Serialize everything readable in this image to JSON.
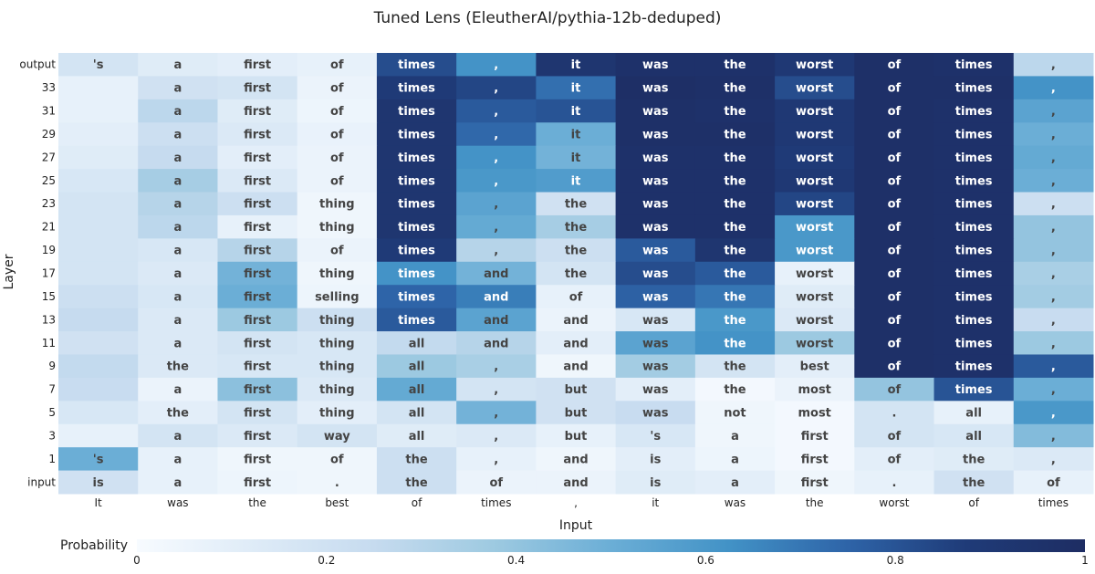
{
  "chart_data": {
    "type": "heatmap",
    "title": "Tuned Lens (EleutherAI/pythia-12b-deduped)",
    "xlabel": "Input",
    "ylabel": "Layer",
    "x_tick_labels": [
      "It",
      "was",
      "the",
      "best",
      "of",
      "times",
      ",",
      "it",
      "was",
      "the",
      "worst",
      "of",
      "times"
    ],
    "y_tick_labels": [
      "output",
      "33",
      "31",
      "29",
      "27",
      "25",
      "23",
      "21",
      "19",
      "17",
      "15",
      "13",
      "11",
      "9",
      "7",
      "5",
      "3",
      "1",
      "input"
    ],
    "cell_labels": [
      [
        "'s",
        "a",
        "first",
        "of",
        "times",
        ",",
        "it",
        "was",
        "the",
        "worst",
        "of",
        "times",
        ","
      ],
      [
        "",
        "a",
        "first",
        "of",
        "times",
        ",",
        "it",
        "was",
        "the",
        "worst",
        "of",
        "times",
        ","
      ],
      [
        "",
        "a",
        "first",
        "of",
        "times",
        ",",
        "it",
        "was",
        "the",
        "worst",
        "of",
        "times",
        ","
      ],
      [
        "",
        "a",
        "first",
        "of",
        "times",
        ",",
        "it",
        "was",
        "the",
        "worst",
        "of",
        "times",
        ","
      ],
      [
        "",
        "a",
        "first",
        "of",
        "times",
        ",",
        "it",
        "was",
        "the",
        "worst",
        "of",
        "times",
        ","
      ],
      [
        "",
        "a",
        "first",
        "of",
        "times",
        ",",
        "it",
        "was",
        "the",
        "worst",
        "of",
        "times",
        ","
      ],
      [
        "",
        "a",
        "first",
        "thing",
        "times",
        ",",
        "the",
        "was",
        "the",
        "worst",
        "of",
        "times",
        ","
      ],
      [
        "",
        "a",
        "first",
        "thing",
        "times",
        ",",
        "the",
        "was",
        "the",
        "worst",
        "of",
        "times",
        ","
      ],
      [
        "",
        "a",
        "first",
        "of",
        "times",
        ",",
        "the",
        "was",
        "the",
        "worst",
        "of",
        "times",
        ","
      ],
      [
        "",
        "a",
        "first",
        "thing",
        "times",
        "and",
        "the",
        "was",
        "the",
        "worst",
        "of",
        "times",
        ","
      ],
      [
        "",
        "a",
        "first",
        "selling",
        "times",
        "and",
        "of",
        "was",
        "the",
        "worst",
        "of",
        "times",
        ","
      ],
      [
        "",
        "a",
        "first",
        "thing",
        "times",
        "and",
        "and",
        "was",
        "the",
        "worst",
        "of",
        "times",
        ","
      ],
      [
        "",
        "a",
        "first",
        "thing",
        "all",
        "and",
        "and",
        "was",
        "the",
        "worst",
        "of",
        "times",
        ","
      ],
      [
        "",
        "the",
        "first",
        "thing",
        "all",
        ",",
        "and",
        "was",
        "the",
        "best",
        "of",
        "times",
        ","
      ],
      [
        "",
        "a",
        "first",
        "thing",
        "all",
        ",",
        "but",
        "was",
        "the",
        "most",
        "of",
        "times",
        ","
      ],
      [
        "",
        "the",
        "first",
        "thing",
        "all",
        ",",
        "but",
        "was",
        "not",
        "most",
        ".",
        "all",
        ","
      ],
      [
        "",
        "a",
        "first",
        "way",
        "all",
        ",",
        "but",
        "'s",
        "a",
        "first",
        "of",
        "all",
        ","
      ],
      [
        "'s",
        "a",
        "first",
        "of",
        "the",
        ",",
        "and",
        "is",
        "a",
        "first",
        "of",
        "the",
        ","
      ],
      [
        "is",
        "a",
        "first",
        ".",
        "the",
        "of",
        "and",
        "is",
        "a",
        "first",
        ".",
        "the",
        "of"
      ]
    ],
    "values": [
      [
        0.18,
        0.12,
        0.1,
        0.08,
        0.82,
        0.62,
        0.92,
        0.96,
        0.96,
        0.9,
        0.97,
        0.96,
        0.28
      ],
      [
        0.08,
        0.2,
        0.18,
        0.06,
        0.88,
        0.84,
        0.72,
        0.98,
        0.97,
        0.82,
        0.97,
        0.97,
        0.62
      ],
      [
        0.08,
        0.28,
        0.12,
        0.05,
        0.92,
        0.78,
        0.8,
        0.97,
        0.96,
        0.9,
        0.97,
        0.96,
        0.55
      ],
      [
        0.1,
        0.22,
        0.14,
        0.07,
        0.92,
        0.74,
        0.5,
        0.97,
        0.97,
        0.9,
        0.97,
        0.96,
        0.5
      ],
      [
        0.12,
        0.25,
        0.1,
        0.06,
        0.92,
        0.62,
        0.48,
        0.96,
        0.96,
        0.88,
        0.97,
        0.96,
        0.52
      ],
      [
        0.16,
        0.35,
        0.14,
        0.06,
        0.92,
        0.6,
        0.58,
        0.96,
        0.96,
        0.9,
        0.97,
        0.96,
        0.5
      ],
      [
        0.18,
        0.3,
        0.22,
        0.04,
        0.92,
        0.55,
        0.2,
        0.96,
        0.96,
        0.84,
        0.97,
        0.96,
        0.22
      ],
      [
        0.18,
        0.28,
        0.08,
        0.04,
        0.92,
        0.52,
        0.35,
        0.96,
        0.96,
        0.6,
        0.97,
        0.96,
        0.4
      ],
      [
        0.18,
        0.16,
        0.3,
        0.06,
        0.88,
        0.3,
        0.22,
        0.78,
        0.92,
        0.6,
        0.97,
        0.96,
        0.4
      ],
      [
        0.18,
        0.14,
        0.48,
        0.04,
        0.62,
        0.48,
        0.18,
        0.82,
        0.78,
        0.08,
        0.97,
        0.96,
        0.34
      ],
      [
        0.22,
        0.16,
        0.5,
        0.05,
        0.75,
        0.68,
        0.08,
        0.76,
        0.7,
        0.12,
        0.97,
        0.96,
        0.36
      ],
      [
        0.25,
        0.14,
        0.38,
        0.22,
        0.78,
        0.55,
        0.06,
        0.16,
        0.6,
        0.14,
        0.97,
        0.96,
        0.24
      ],
      [
        0.2,
        0.14,
        0.18,
        0.16,
        0.26,
        0.3,
        0.1,
        0.55,
        0.62,
        0.38,
        0.97,
        0.96,
        0.38
      ],
      [
        0.26,
        0.14,
        0.16,
        0.16,
        0.38,
        0.34,
        0.04,
        0.36,
        0.18,
        0.1,
        0.97,
        0.96,
        0.78
      ],
      [
        0.24,
        0.06,
        0.42,
        0.14,
        0.52,
        0.18,
        0.2,
        0.1,
        0.02,
        0.06,
        0.4,
        0.8,
        0.5
      ],
      [
        0.16,
        0.1,
        0.18,
        0.1,
        0.18,
        0.48,
        0.2,
        0.24,
        0.04,
        0.02,
        0.18,
        0.08,
        0.6
      ],
      [
        0.08,
        0.18,
        0.14,
        0.18,
        0.12,
        0.14,
        0.08,
        0.16,
        0.04,
        0.02,
        0.18,
        0.16,
        0.44
      ],
      [
        0.5,
        0.08,
        0.04,
        0.04,
        0.22,
        0.08,
        0.04,
        0.1,
        0.05,
        0.02,
        0.1,
        0.12,
        0.14
      ],
      [
        0.2,
        0.08,
        0.05,
        0.04,
        0.22,
        0.06,
        0.06,
        0.12,
        0.1,
        0.04,
        0.08,
        0.2,
        0.08
      ]
    ],
    "colorbar": {
      "label": "Probability",
      "range": [
        0,
        1
      ],
      "ticks": [
        "0",
        "0.2",
        "0.4",
        "0.6",
        "0.8",
        "1"
      ],
      "colors": [
        "#f7fbff",
        "#deebf7",
        "#c6dbef",
        "#9ecae1",
        "#6baed6",
        "#4292c6",
        "#2e64a8",
        "#1f3b78",
        "#1e2d63"
      ]
    }
  }
}
